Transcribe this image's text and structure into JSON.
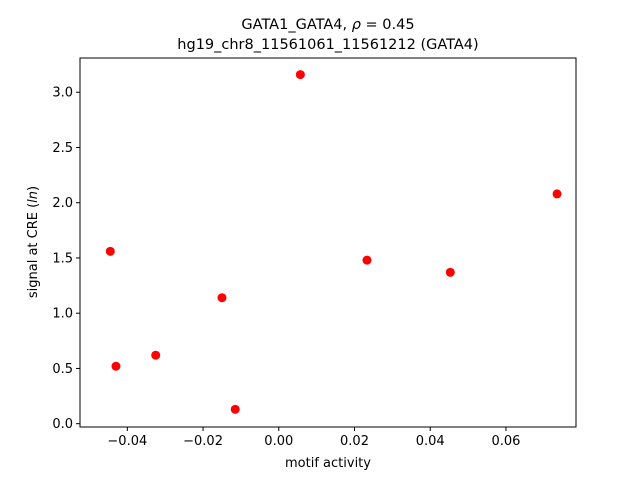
{
  "chart_data": {
    "type": "scatter",
    "title_line1_prefix": "GATA1_GATA4, ",
    "title_line1_rho": "ρ",
    "title_line1_suffix": " = 0.45",
    "title_line2": "hg19_chr8_11561061_11561212 (GATA4)",
    "xlabel": "motif activity",
    "ylabel_prefix": "signal at CRE (",
    "ylabel_italic": "ln",
    "ylabel_suffix": ")",
    "xlim": [
      -0.0525,
      0.0785
    ],
    "ylim": [
      -0.03,
      3.31
    ],
    "x_ticks": [
      {
        "value": -0.04,
        "label": "−0.04"
      },
      {
        "value": -0.02,
        "label": "−0.02"
      },
      {
        "value": 0.0,
        "label": "0.00"
      },
      {
        "value": 0.02,
        "label": "0.02"
      },
      {
        "value": 0.04,
        "label": "0.04"
      },
      {
        "value": 0.06,
        "label": "0.06"
      }
    ],
    "y_ticks": [
      {
        "value": 0.0,
        "label": "0.0"
      },
      {
        "value": 0.5,
        "label": "0.5"
      },
      {
        "value": 1.0,
        "label": "1.0"
      },
      {
        "value": 1.5,
        "label": "1.5"
      },
      {
        "value": 2.0,
        "label": "2.0"
      },
      {
        "value": 2.5,
        "label": "2.5"
      },
      {
        "value": 3.0,
        "label": "3.0"
      }
    ],
    "grid": false,
    "marker_color": "#ff0000",
    "points": [
      {
        "x": -0.0445,
        "y": 1.56
      },
      {
        "x": -0.043,
        "y": 0.52
      },
      {
        "x": -0.0325,
        "y": 0.62
      },
      {
        "x": -0.015,
        "y": 1.14
      },
      {
        "x": -0.0115,
        "y": 0.13
      },
      {
        "x": 0.0057,
        "y": 3.16
      },
      {
        "x": 0.0233,
        "y": 1.48
      },
      {
        "x": 0.0453,
        "y": 1.37
      },
      {
        "x": 0.0735,
        "y": 2.08
      }
    ]
  }
}
